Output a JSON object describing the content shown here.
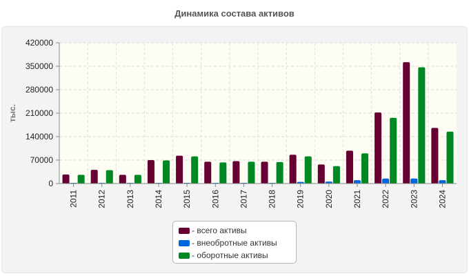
{
  "chart_data": {
    "type": "bar",
    "title": "Динамика состава активов",
    "xlabel": "",
    "ylabel": "тыс.",
    "ylim": [
      0,
      420000
    ],
    "yticks": [
      0,
      70000,
      140000,
      210000,
      280000,
      350000,
      420000
    ],
    "categories": [
      "2011",
      "2012",
      "2013",
      "2014",
      "2015",
      "2016",
      "2017",
      "2018",
      "2019",
      "2020",
      "2021",
      "2022",
      "2023",
      "2024"
    ],
    "series": [
      {
        "name": "- всего активы",
        "color": "#660033",
        "values": [
          27000,
          41000,
          26000,
          70000,
          83000,
          65000,
          67000,
          65000,
          86000,
          57000,
          98000,
          212000,
          362000,
          166000
        ]
      },
      {
        "name": "- внеобротные активы",
        "color": "#0066dd",
        "values": [
          2000,
          2000,
          2000,
          2000,
          2000,
          2000,
          2000,
          2000,
          5000,
          6000,
          10000,
          15000,
          15000,
          10000
        ]
      },
      {
        "name": "- оборотные активы",
        "color": "#008822",
        "values": [
          26000,
          40000,
          26000,
          69000,
          81000,
          63000,
          65000,
          64000,
          81000,
          52000,
          90000,
          196000,
          347000,
          155000
        ]
      }
    ],
    "grid": true,
    "legend_position": "bottom-center"
  }
}
